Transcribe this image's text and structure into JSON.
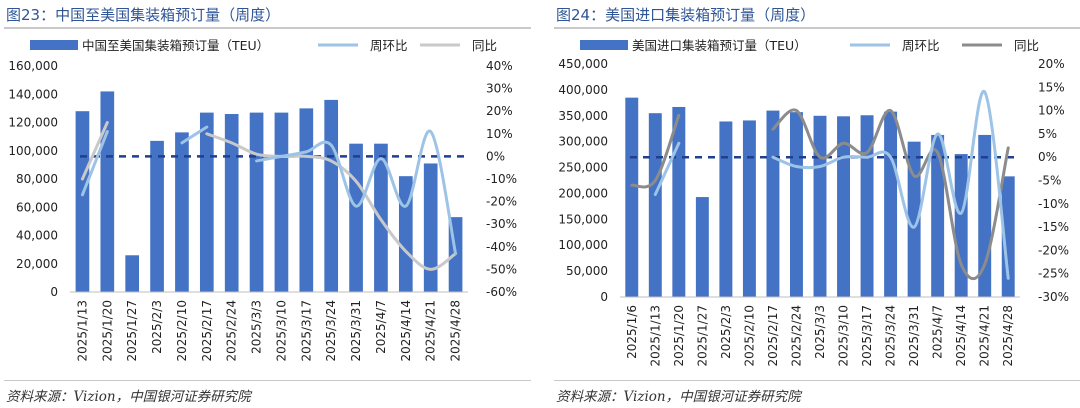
{
  "charts": [
    {
      "title": "图23：中国至美国集装箱预订量（周度）",
      "source": "资料来源：Vizion，中国银河证券研究院",
      "legend": {
        "bar": "中国至美国集装箱预订量（TEU）",
        "wow": "周环比",
        "yoy": "同比"
      }
    },
    {
      "title": "图24：美国进口集装箱预订量（周度）",
      "source": "资料来源：Vizion，中国银河证券研究院",
      "legend": {
        "bar": "美国进口集装箱预订量（TEU）",
        "wow": "周环比",
        "yoy": "同比"
      }
    }
  ],
  "colors": {
    "bar": "#4472c4",
    "wow": "#9dc3e6",
    "yoy_left": "#c9c9c9",
    "yoy_right": "#8c8c8c",
    "ref_line": "#1f3f8f"
  },
  "chart_data": [
    {
      "type": "bar",
      "title": "图23：中国至美国集装箱预订量（周度）",
      "categories": [
        "2025/1/13",
        "2025/1/20",
        "2025/1/27",
        "2025/2/3",
        "2025/2/10",
        "2025/2/17",
        "2025/2/24",
        "2025/3/3",
        "2025/3/10",
        "2025/3/17",
        "2025/3/24",
        "2025/3/31",
        "2025/4/7",
        "2025/4/14",
        "2025/4/21",
        "2025/4/28"
      ],
      "y_left": {
        "ylim": [
          0,
          160000
        ],
        "ticks": [
          0,
          20000,
          40000,
          60000,
          80000,
          100000,
          120000,
          140000,
          160000
        ],
        "tick_labels": [
          "0",
          "20,000",
          "40,000",
          "60,000",
          "80,000",
          "100,000",
          "120,000",
          "140,000",
          "160,000"
        ]
      },
      "y_right": {
        "ylim": [
          -60,
          40
        ],
        "ticks": [
          -60,
          -50,
          -40,
          -30,
          -20,
          -10,
          0,
          10,
          20,
          30,
          40
        ],
        "tick_labels": [
          "-60%",
          "-50%",
          "-40%",
          "-30%",
          "-20%",
          "-10%",
          "0%",
          "10%",
          "20%",
          "30%",
          "40%"
        ],
        "unit": "%"
      },
      "series": [
        {
          "name": "中国至美国集装箱预订量（TEU）",
          "kind": "bar",
          "axis": "left",
          "values": [
            128000,
            142000,
            26000,
            107000,
            113000,
            127000,
            126000,
            127000,
            127000,
            130000,
            136000,
            105000,
            105000,
            82000,
            91000,
            53000
          ]
        },
        {
          "name": "周环比",
          "kind": "line",
          "axis": "right",
          "values": [
            -17,
            11,
            null,
            null,
            6,
            13,
            null,
            -2,
            0,
            2,
            5,
            -22,
            -1,
            -22,
            11,
            -43
          ]
        },
        {
          "name": "同比",
          "kind": "line",
          "axis": "right",
          "values": [
            -10,
            15,
            null,
            null,
            null,
            10,
            6,
            1,
            0,
            0,
            -2,
            -11,
            -28,
            -42,
            -50,
            -43
          ]
        }
      ],
      "reference_line": {
        "axis": "right",
        "value": 0
      },
      "legend_position": "top"
    },
    {
      "type": "bar",
      "title": "图24：美国进口集装箱预订量（周度）",
      "categories": [
        "2025/1/6",
        "2025/1/13",
        "2025/1/20",
        "2025/1/27",
        "2025/2/3",
        "2025/2/10",
        "2025/2/17",
        "2025/2/24",
        "2025/3/3",
        "2025/3/10",
        "2025/3/17",
        "2025/3/24",
        "2025/3/31",
        "2025/4/7",
        "2025/4/14",
        "2025/4/21",
        "2025/4/28"
      ],
      "y_left": {
        "ylim": [
          0,
          450000
        ],
        "ticks": [
          0,
          50000,
          100000,
          150000,
          200000,
          250000,
          300000,
          350000,
          400000,
          450000
        ],
        "tick_labels": [
          "0",
          "50,000",
          "100,000",
          "150,000",
          "200,000",
          "250,000",
          "300,000",
          "350,000",
          "400,000",
          "450,000"
        ]
      },
      "y_right": {
        "ylim": [
          -30,
          20
        ],
        "ticks": [
          -30,
          -25,
          -20,
          -15,
          -10,
          -5,
          0,
          5,
          10,
          15,
          20
        ],
        "tick_labels": [
          "-30%",
          "-25%",
          "-20%",
          "-15%",
          "-10%",
          "-5%",
          "0%",
          "5%",
          "10%",
          "15%",
          "20%"
        ],
        "unit": "%"
      },
      "series": [
        {
          "name": "美国进口集装箱预订量（TEU）",
          "kind": "bar",
          "axis": "left",
          "values": [
            385000,
            355000,
            367000,
            193000,
            339000,
            341000,
            360000,
            357000,
            350000,
            349000,
            351000,
            358000,
            300000,
            313000,
            276000,
            313000,
            233000
          ]
        },
        {
          "name": "周环比",
          "kind": "line",
          "axis": "right",
          "values": [
            null,
            -8,
            3,
            null,
            null,
            null,
            0,
            -2,
            -2,
            0,
            0,
            0,
            -15,
            5,
            -12,
            14,
            -26
          ]
        },
        {
          "name": "同比",
          "kind": "line",
          "axis": "right",
          "values": [
            -6,
            -5,
            9,
            null,
            null,
            null,
            6,
            10,
            0,
            3,
            1,
            10,
            -4,
            1,
            -23,
            -23,
            2
          ]
        }
      ],
      "reference_line": {
        "axis": "right",
        "value": 0
      },
      "legend_position": "top"
    }
  ]
}
